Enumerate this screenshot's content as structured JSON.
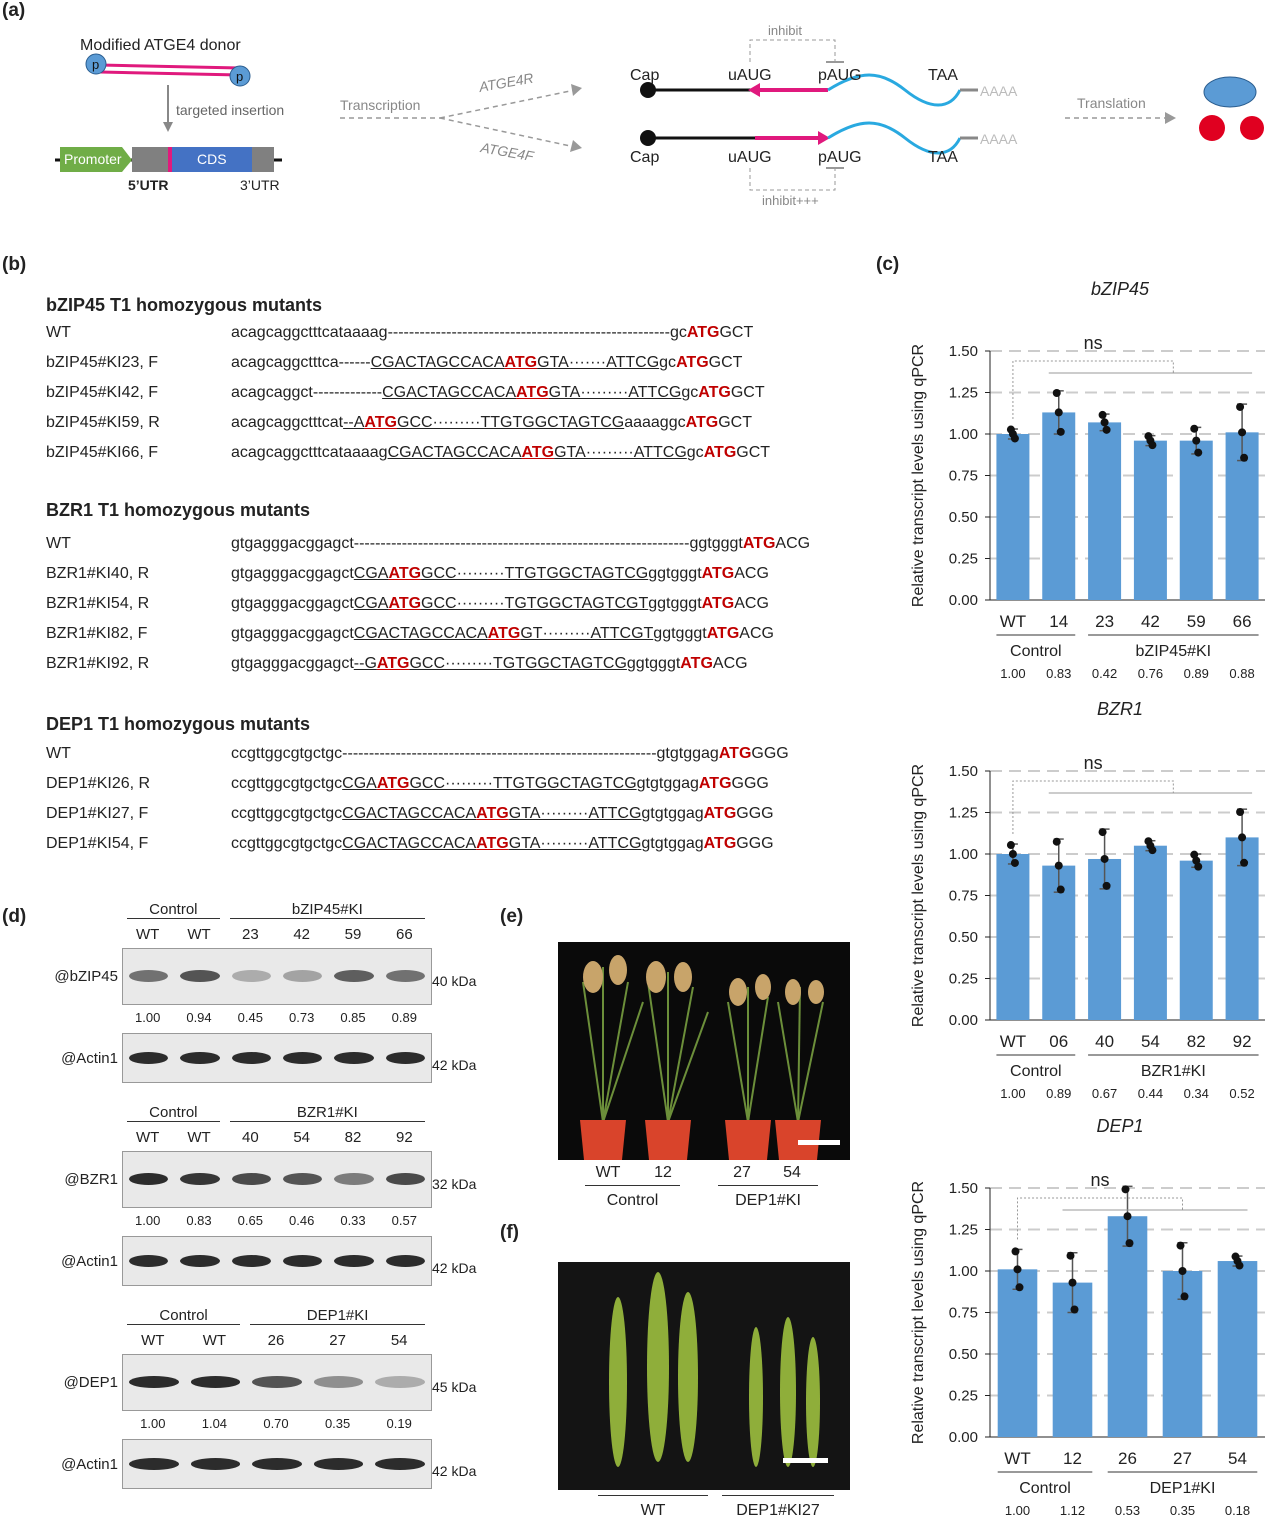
{
  "panel_a": {
    "label": "(a)",
    "donor_title": "Modified ATGE4 donor",
    "p_label": "p",
    "targeted_insertion": "targeted insertion",
    "promoter": "Promoter",
    "cds": "CDS",
    "utr5": "5’UTR",
    "utr3": "3’UTR",
    "transcription": "Transcription",
    "atge4r": "ATGE4R",
    "atge4f": "ATGE4F",
    "cap": "Cap",
    "uaug": "uAUG",
    "paug": "pAUG",
    "taa": "TAA",
    "polya": "AAAA",
    "inhibit": "inhibit",
    "inhibit_strong": "inhibit+++",
    "translation": "Translation"
  },
  "panel_b": {
    "label": "(b)",
    "groups": [
      {
        "title": "bZIP45 T1 homozygous mutants",
        "rows": [
          {
            "name": "WT",
            "parts": [
              [
                "n",
                "acagcaggctttcataaaag-----------------------------------------------------gc"
              ],
              [
                "a",
                "ATG"
              ],
              [
                "n",
                "GCT"
              ]
            ]
          },
          {
            "name": "bZIP45#KI23, F",
            "parts": [
              [
                "n",
                "acagcaggctttca------"
              ],
              [
                "u",
                "CGACTAGCCACA"
              ],
              [
                "ua",
                "ATG"
              ],
              [
                "u",
                "GTA·······ATTCG"
              ],
              [
                "n",
                "gc"
              ],
              [
                "a",
                "ATG"
              ],
              [
                "n",
                "GCT"
              ]
            ]
          },
          {
            "name": "bZIP45#KI42, F",
            "parts": [
              [
                "n",
                "acagcaggct-------------"
              ],
              [
                "u",
                "CGACTAGCCACA"
              ],
              [
                "ua",
                "ATG"
              ],
              [
                "u",
                "GTA·········ATTCG"
              ],
              [
                "n",
                "gc"
              ],
              [
                "a",
                "ATG"
              ],
              [
                "n",
                "GCT"
              ]
            ]
          },
          {
            "name": "bZIP45#KI59, R",
            "parts": [
              [
                "n",
                "acagcaggctttcat"
              ],
              [
                "u",
                "--A"
              ],
              [
                "ua",
                "ATG"
              ],
              [
                "u",
                "GCC·········TTGTGGCTAGTCG"
              ],
              [
                "n",
                "aaaaggc"
              ],
              [
                "a",
                "ATG"
              ],
              [
                "n",
                "GCT"
              ]
            ]
          },
          {
            "name": "bZIP45#KI66, F",
            "parts": [
              [
                "n",
                "acagcaggctttcataaaag"
              ],
              [
                "u",
                "CGACTAGCCACA"
              ],
              [
                "ua",
                "ATG"
              ],
              [
                "u",
                "GTA·········ATTCG"
              ],
              [
                "n",
                "gc"
              ],
              [
                "a",
                "ATG"
              ],
              [
                "n",
                "GCT"
              ]
            ]
          }
        ]
      },
      {
        "title": "BZR1 T1 homozygous mutants",
        "rows": [
          {
            "name": "WT",
            "parts": [
              [
                "n",
                "gtgagggacggagct---------------------------------------------------------------ggtgggt"
              ],
              [
                "a",
                "ATG"
              ],
              [
                "n",
                "ACG"
              ]
            ]
          },
          {
            "name": "BZR1#KI40, R",
            "parts": [
              [
                "n",
                "gtgagggacggagct"
              ],
              [
                "u",
                "CGA"
              ],
              [
                "ua",
                "ATG"
              ],
              [
                "u",
                "GCC·········TTGTGGCTAGTCG"
              ],
              [
                "n",
                "ggtgggt"
              ],
              [
                "a",
                "ATG"
              ],
              [
                "n",
                "ACG"
              ]
            ]
          },
          {
            "name": "BZR1#KI54, R",
            "parts": [
              [
                "n",
                "gtgagggacggagct"
              ],
              [
                "u",
                "CGA"
              ],
              [
                "ua",
                "ATG"
              ],
              [
                "u",
                "GCC·········TGTGGCTAGTCGT"
              ],
              [
                "n",
                "ggtgggt"
              ],
              [
                "a",
                "ATG"
              ],
              [
                "n",
                "ACG"
              ]
            ]
          },
          {
            "name": "BZR1#KI82, F",
            "parts": [
              [
                "n",
                "gtgagggacggagct"
              ],
              [
                "u",
                "CGACTAGCCACA"
              ],
              [
                "ua",
                "ATG"
              ],
              [
                "u",
                "GT·········ATTCGT"
              ],
              [
                "n",
                "ggtgggt"
              ],
              [
                "a",
                "ATG"
              ],
              [
                "n",
                "ACG"
              ]
            ]
          },
          {
            "name": "BZR1#KI92, R",
            "parts": [
              [
                "n",
                "gtgagggacggagct"
              ],
              [
                "u",
                "--G"
              ],
              [
                "ua",
                "ATG"
              ],
              [
                "u",
                "GCC·········TGTGGCTAGTCG"
              ],
              [
                "n",
                "ggtgggt"
              ],
              [
                "a",
                "ATG"
              ],
              [
                "n",
                "ACG"
              ]
            ]
          }
        ]
      },
      {
        "title": "DEP1 T1 homozygous mutants",
        "rows": [
          {
            "name": "WT",
            "parts": [
              [
                "n",
                "ccgttggcgtgctgc-----------------------------------------------------------gtgtggag"
              ],
              [
                "a",
                "ATG"
              ],
              [
                "n",
                "GGG"
              ]
            ]
          },
          {
            "name": "DEP1#KI26, R",
            "parts": [
              [
                "n",
                "ccgttggcgtgctgc"
              ],
              [
                "u",
                "CGA"
              ],
              [
                "ua",
                "ATG"
              ],
              [
                "u",
                "GCC·········TTGTGGCTAGTCG"
              ],
              [
                "n",
                "gtgtggag"
              ],
              [
                "a",
                "ATG"
              ],
              [
                "n",
                "GGG"
              ]
            ]
          },
          {
            "name": "DEP1#KI27, F",
            "parts": [
              [
                "n",
                "ccgttggcgtgctgc"
              ],
              [
                "u",
                "CGACTAGCCACA"
              ],
              [
                "ua",
                "ATG"
              ],
              [
                "u",
                "GTA·········ATTCG"
              ],
              [
                "n",
                "gtgtggag"
              ],
              [
                "a",
                "ATG"
              ],
              [
                "n",
                "GGG"
              ]
            ]
          },
          {
            "name": "DEP1#KI54, F",
            "parts": [
              [
                "n",
                "ccgttggcgtgctgc"
              ],
              [
                "u",
                "CGACTAGCCACA"
              ],
              [
                "ua",
                "ATG"
              ],
              [
                "u",
                "GTA·········ATTCG"
              ],
              [
                "n",
                "gtgtggag"
              ],
              [
                "a",
                "ATG"
              ],
              [
                "n",
                "GGG"
              ]
            ]
          }
        ]
      }
    ]
  },
  "panel_c": {
    "label": "(c)"
  },
  "chart_data": [
    {
      "type": "bar",
      "title": "bZIP45",
      "ylabel": "Relative transcript levels using qPCR",
      "ylim": [
        0,
        1.5
      ],
      "yticks": [
        "0.00",
        "0.25",
        "0.50",
        "0.75",
        "1.00",
        "1.25",
        "1.50"
      ],
      "categories": [
        "WT",
        "14",
        "23",
        "42",
        "59",
        "66"
      ],
      "values": [
        1.0,
        1.13,
        1.07,
        0.96,
        0.96,
        1.01
      ],
      "errors": [
        0.03,
        0.13,
        0.05,
        0.03,
        0.08,
        0.17
      ],
      "group_labels": [
        "Control",
        "bZIP45#KI"
      ],
      "group_sizes": [
        2,
        4
      ],
      "sig_label": "ns",
      "ratios": [
        "1.00",
        "0.83",
        "0.42",
        "0.76",
        "0.89",
        "0.88"
      ]
    },
    {
      "type": "bar",
      "title": "BZR1",
      "ylabel": "Relative transcript levels using qPCR",
      "ylim": [
        0,
        1.5
      ],
      "yticks": [
        "0.00",
        "0.25",
        "0.50",
        "0.75",
        "1.00",
        "1.25",
        "1.50"
      ],
      "categories": [
        "WT",
        "06",
        "40",
        "54",
        "82",
        "92"
      ],
      "values": [
        1.0,
        0.93,
        0.97,
        1.05,
        0.96,
        1.1
      ],
      "errors": [
        0.06,
        0.16,
        0.18,
        0.03,
        0.04,
        0.17
      ],
      "group_labels": [
        "Control",
        "BZR1#KI"
      ],
      "group_sizes": [
        2,
        4
      ],
      "sig_label": "ns",
      "ratios": [
        "1.00",
        "0.89",
        "0.67",
        "0.44",
        "0.34",
        "0.52"
      ]
    },
    {
      "type": "bar",
      "title": "DEP1",
      "ylabel": "Relative transcript levels using qPCR",
      "ylim": [
        0,
        1.5
      ],
      "yticks": [
        "0.00",
        "0.25",
        "0.50",
        "0.75",
        "1.00",
        "1.25",
        "1.50"
      ],
      "categories": [
        "WT",
        "12",
        "26",
        "27",
        "54"
      ],
      "values": [
        1.01,
        0.93,
        1.33,
        1.0,
        1.06
      ],
      "errors": [
        0.12,
        0.18,
        0.18,
        0.17,
        0.03
      ],
      "group_labels": [
        "Control",
        "DEP1#KI"
      ],
      "group_sizes": [
        2,
        3
      ],
      "sig_label": "ns",
      "ratios": [
        "1.00",
        "1.12",
        "0.53",
        "0.35",
        "0.18"
      ]
    }
  ],
  "panel_d": {
    "label": "(d)",
    "blots": [
      {
        "group_control": "Control",
        "group_ki": "bZIP45#KI",
        "lanes": [
          "WT",
          "WT",
          "23",
          "42",
          "59",
          "66"
        ],
        "target": "@bZIP45",
        "target_kda": "40 kDa",
        "ratios": [
          "1.00",
          "0.94",
          "0.45",
          "0.73",
          "0.85",
          "0.89"
        ],
        "intensity": [
          0.6,
          0.75,
          0.3,
          0.35,
          0.7,
          0.6
        ],
        "actin": "@Actin1",
        "actin_kda": "42 kDa"
      },
      {
        "group_control": "Control",
        "group_ki": "BZR1#KI",
        "lanes": [
          "WT",
          "WT",
          "40",
          "54",
          "82",
          "92"
        ],
        "target": "@BZR1",
        "target_kda": "32 kDa",
        "ratios": [
          "1.00",
          "0.83",
          "0.65",
          "0.46",
          "0.33",
          "0.57"
        ],
        "intensity": [
          0.95,
          0.9,
          0.8,
          0.75,
          0.55,
          0.8
        ],
        "actin": "@Actin1",
        "actin_kda": "42 kDa"
      },
      {
        "group_control": "Control",
        "group_ki": "DEP1#KI",
        "lanes": [
          "WT",
          "WT",
          "26",
          "27",
          "54"
        ],
        "target": "@DEP1",
        "target_kda": "45 kDa",
        "ratios": [
          "1.00",
          "1.04",
          "0.70",
          "0.35",
          "0.19"
        ],
        "intensity": [
          0.95,
          0.95,
          0.75,
          0.45,
          0.3
        ],
        "actin": "@Actin1",
        "actin_kda": "42 kDa"
      }
    ]
  },
  "panel_e": {
    "label": "(e)",
    "lanes": [
      "WT",
      "12",
      "27",
      "54"
    ],
    "groups": [
      "Control",
      "DEP1#KI"
    ]
  },
  "panel_f": {
    "label": "(f)",
    "groups": [
      "WT",
      "DEP1#KI27"
    ]
  },
  "colors": {
    "bar": "#5b9bd5",
    "magenta": "#e0197d",
    "cyan": "#29a9e0",
    "atg_red": "#c00000",
    "promoter_green": "#70ad47",
    "cds_blue": "#4472c4"
  }
}
